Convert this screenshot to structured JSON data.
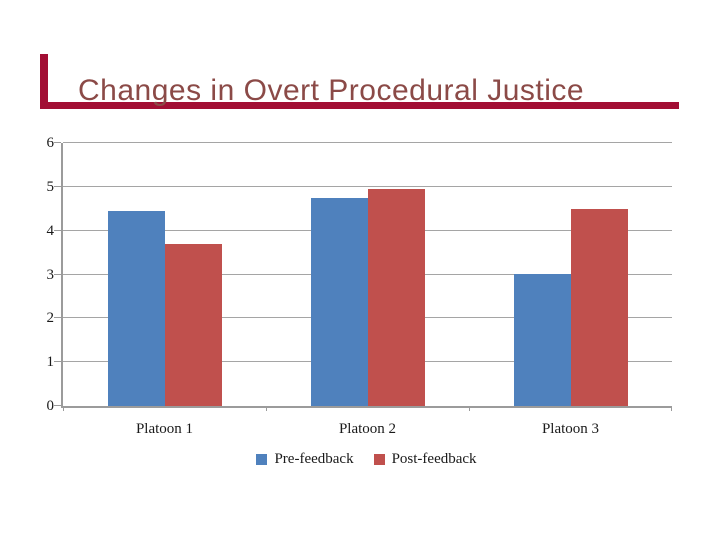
{
  "slide": {
    "title": "Changes in Overt Procedural Justice",
    "title_color": "#8B4A47",
    "accent_color": "#A20E34",
    "background_color": "#FFFFFF"
  },
  "chart_data": {
    "type": "bar",
    "title": "Changes in Overt Procedural Justice",
    "categories": [
      "Platoon 1",
      "Platoon 2",
      "Platoon 3"
    ],
    "series": [
      {
        "name": "Pre-feedback",
        "color": "#4F81BD",
        "values": [
          4.45,
          4.75,
          3.0
        ]
      },
      {
        "name": "Post-feedback",
        "color": "#C0504D",
        "values": [
          3.7,
          4.95,
          4.5
        ]
      }
    ],
    "xlabel": "",
    "ylabel": "",
    "ylim": [
      0,
      6
    ],
    "yticks": [
      0,
      1,
      2,
      3,
      4,
      5,
      6
    ],
    "grid": true,
    "gridline_color": "#A5A5A5",
    "axis_color": "#9B9B9B",
    "legend_position": "bottom"
  }
}
